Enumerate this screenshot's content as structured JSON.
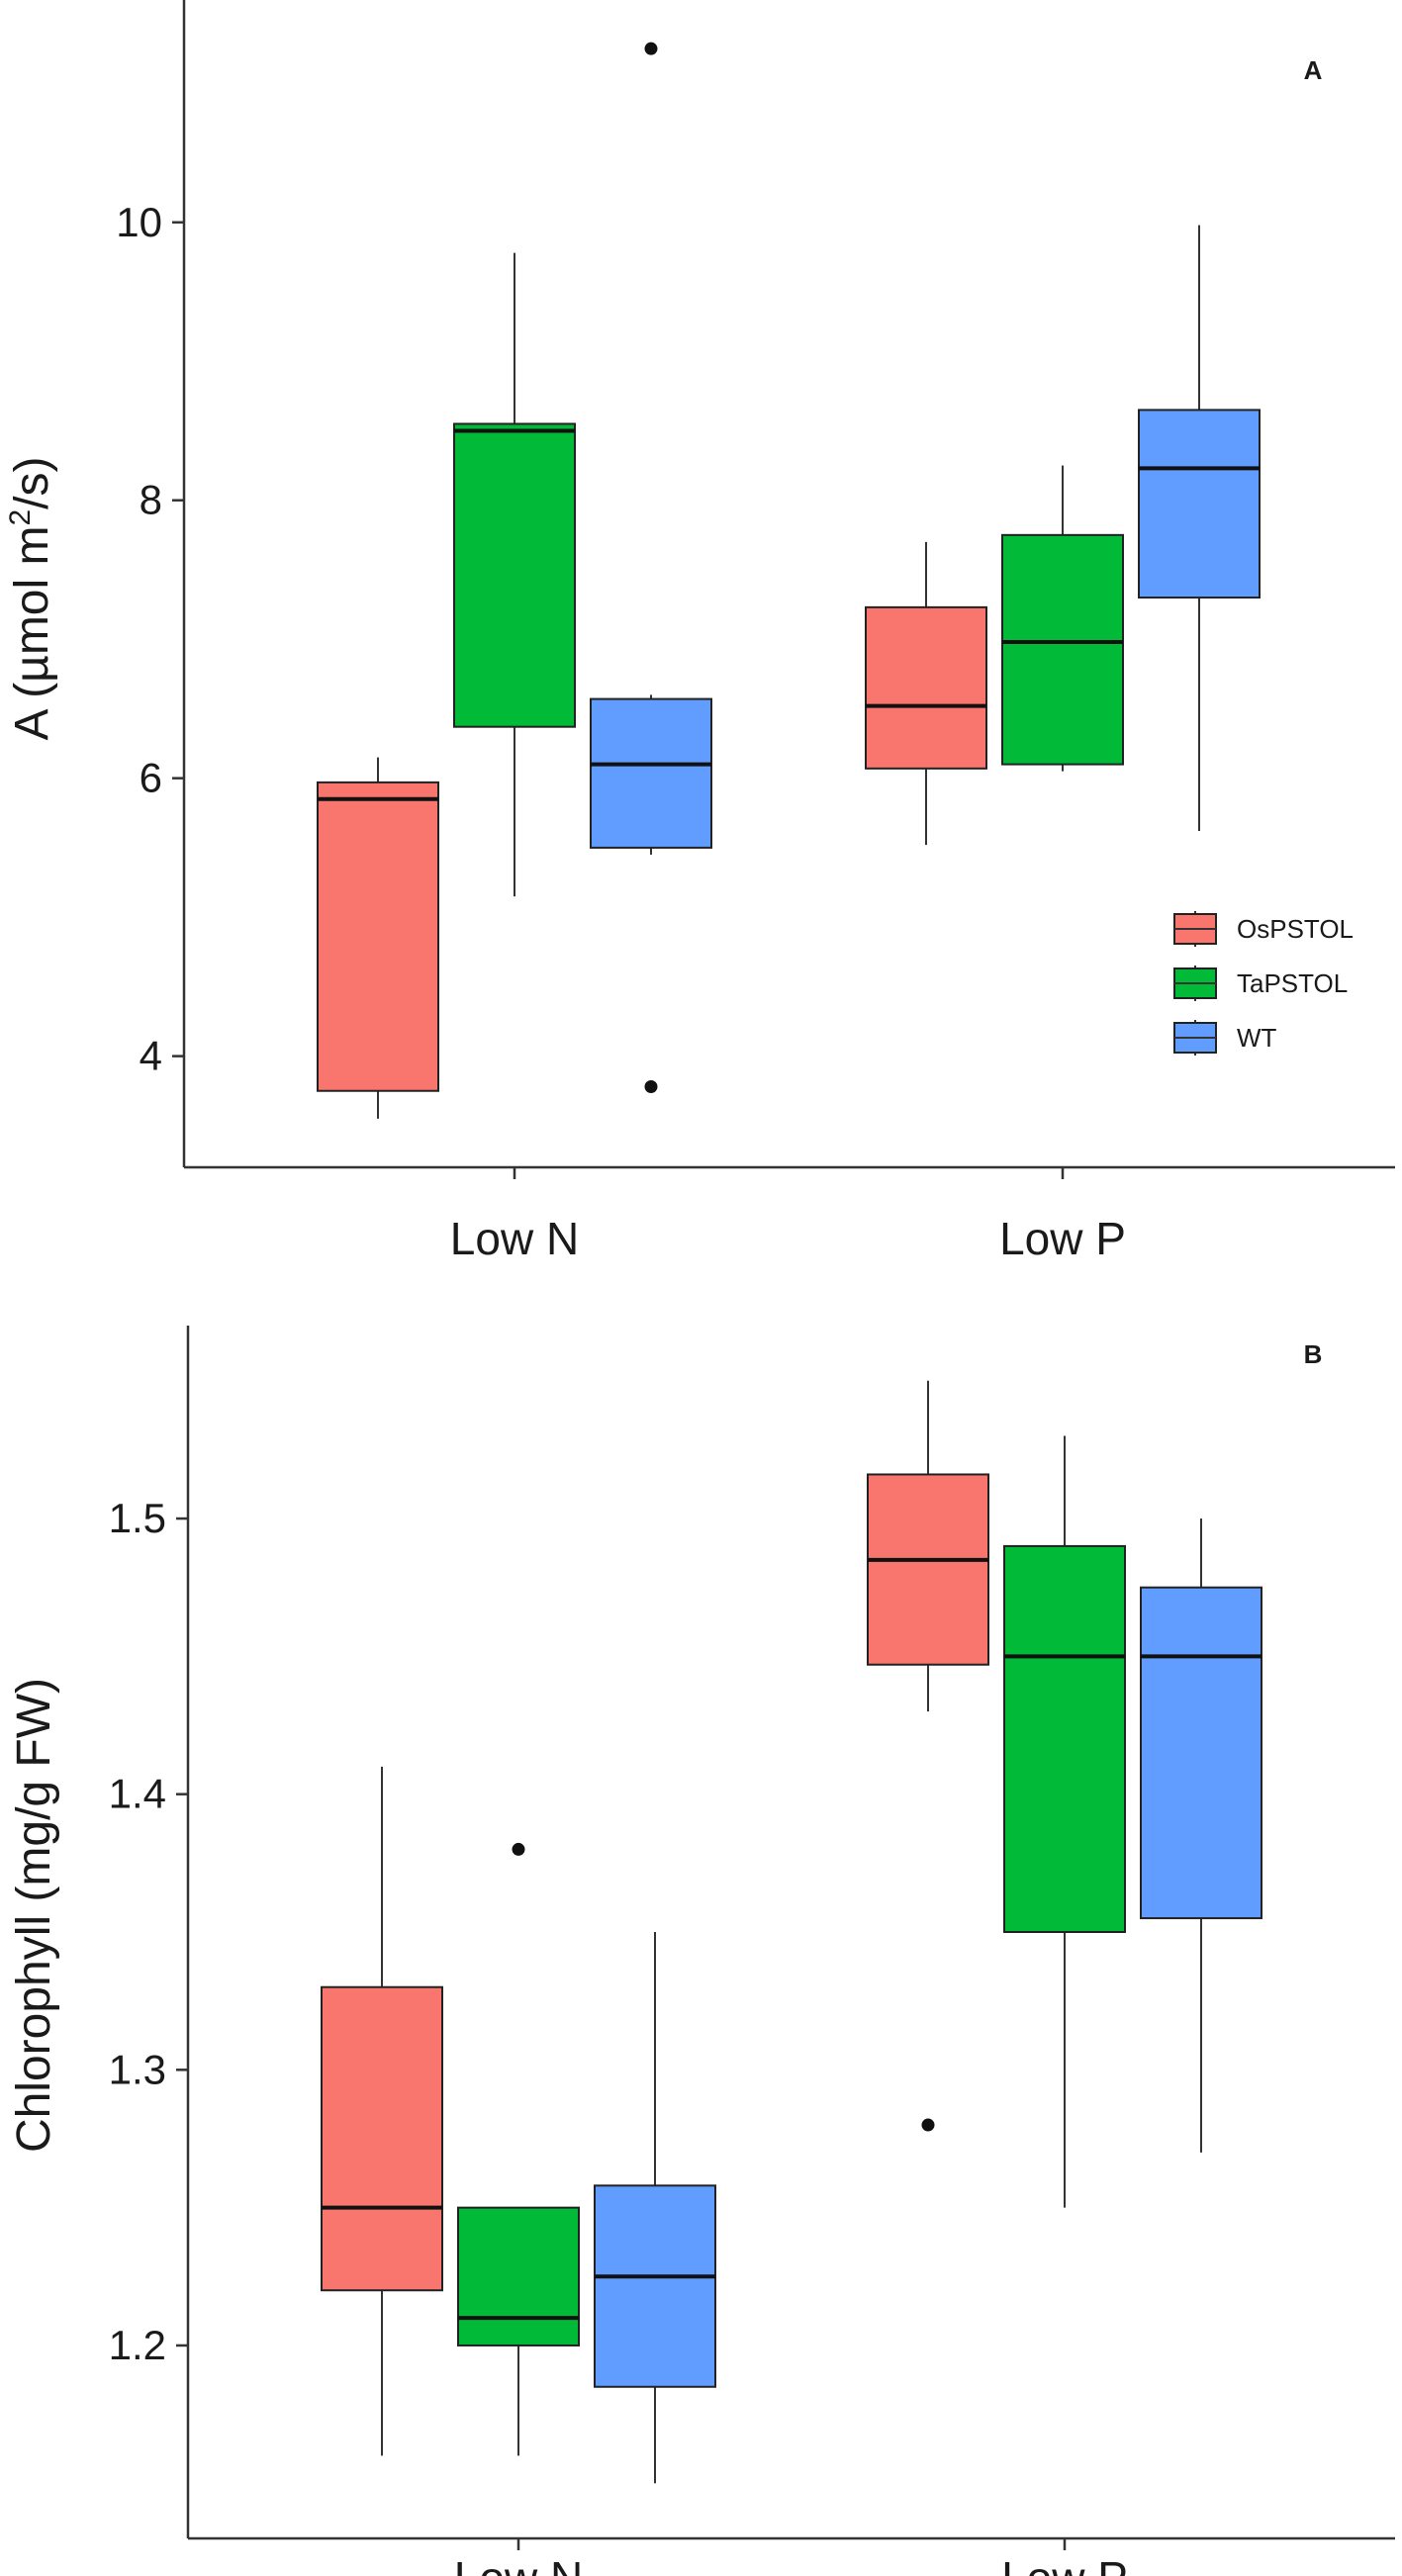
{
  "colors": {
    "OsPSTOL": "#F8766D",
    "TaPSTOL": "#00BA38",
    "WT": "#619CFF"
  },
  "legend": {
    "items": [
      "OsPSTOL",
      "TaPSTOL",
      "WT"
    ]
  },
  "chart_data": [
    {
      "type": "box",
      "panel_label": "A",
      "ylabel": "A (µmol m²/s)",
      "ylabel_pre": "A (µmol m",
      "ylabel_sup": "2",
      "ylabel_post": "/s)",
      "ylim": [
        3.2,
        11.6
      ],
      "yticks": [
        4,
        6,
        8,
        10
      ],
      "ytick_labels": [
        "4",
        "6",
        "8",
        "10"
      ],
      "categories": [
        "Low N",
        "Low P"
      ],
      "series": [
        {
          "name": "OsPSTOL",
          "boxes": [
            {
              "min": 3.55,
              "q1": 3.75,
              "median": 5.85,
              "q3": 5.97,
              "max": 6.15,
              "outliers": []
            },
            {
              "min": 5.52,
              "q1": 6.07,
              "median": 6.52,
              "q3": 7.23,
              "max": 7.7,
              "outliers": []
            }
          ]
        },
        {
          "name": "TaPSTOL",
          "boxes": [
            {
              "min": 5.15,
              "q1": 6.37,
              "median": 8.5,
              "q3": 8.55,
              "max": 9.78,
              "outliers": []
            },
            {
              "min": 6.05,
              "q1": 6.1,
              "median": 6.98,
              "q3": 7.75,
              "max": 8.25,
              "outliers": []
            }
          ]
        },
        {
          "name": "WT",
          "boxes": [
            {
              "min": 5.45,
              "q1": 5.5,
              "median": 6.1,
              "q3": 6.57,
              "max": 6.6,
              "outliers": [
                3.78,
                11.25
              ]
            },
            {
              "min": 5.62,
              "q1": 7.3,
              "median": 8.23,
              "q3": 8.65,
              "max": 9.98,
              "outliers": []
            }
          ]
        }
      ]
    },
    {
      "type": "box",
      "panel_label": "B",
      "ylabel": "Chlorophyll (mg/g FW)",
      "ylim": [
        1.13,
        1.57
      ],
      "yticks": [
        1.2,
        1.3,
        1.4,
        1.5
      ],
      "ytick_labels": [
        "1.2",
        "1.3",
        "1.4",
        "1.5"
      ],
      "categories": [
        "Low N",
        "Low P"
      ],
      "series": [
        {
          "name": "OsPSTOL",
          "boxes": [
            {
              "min": 1.16,
              "q1": 1.22,
              "median": 1.25,
              "q3": 1.33,
              "max": 1.41,
              "outliers": []
            },
            {
              "min": 1.43,
              "q1": 1.447,
              "median": 1.485,
              "q3": 1.516,
              "max": 1.55,
              "outliers": [
                1.28
              ]
            }
          ]
        },
        {
          "name": "TaPSTOL",
          "boxes": [
            {
              "min": 1.16,
              "q1": 1.2,
              "median": 1.21,
              "q3": 1.25,
              "max": 1.25,
              "outliers": [
                1.38
              ]
            },
            {
              "min": 1.25,
              "q1": 1.35,
              "median": 1.45,
              "q3": 1.49,
              "max": 1.53,
              "outliers": []
            }
          ]
        },
        {
          "name": "WT",
          "boxes": [
            {
              "min": 1.15,
              "q1": 1.185,
              "median": 1.225,
              "q3": 1.258,
              "max": 1.35,
              "outliers": []
            },
            {
              "min": 1.27,
              "q1": 1.355,
              "median": 1.45,
              "q3": 1.475,
              "max": 1.5,
              "outliers": []
            }
          ]
        }
      ]
    }
  ]
}
